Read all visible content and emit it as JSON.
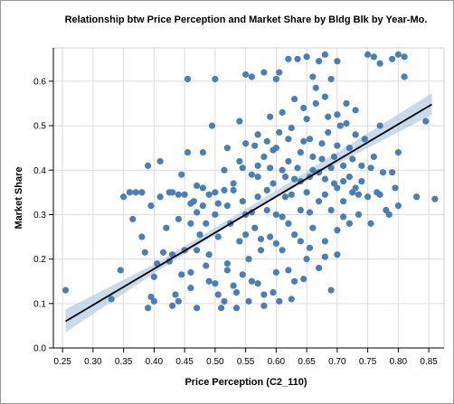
{
  "chart_data": {
    "type": "scatter",
    "title": "Relationship btw Price Perception and Market Share by Bldg Blk by Year-Mo.",
    "xlabel": "Price Perception (C2_110)",
    "ylabel": "Market Share",
    "xlim": [
      0.235,
      0.875
    ],
    "ylim": [
      0.0,
      0.675
    ],
    "xticks": [
      "0.25",
      "0.30",
      "0.35",
      "0.40",
      "0.45",
      "0.50",
      "0.55",
      "0.60",
      "0.65",
      "0.70",
      "0.75",
      "0.80",
      "0.85"
    ],
    "yticks": [
      "0.0",
      "0.1",
      "0.2",
      "0.3",
      "0.4",
      "0.5",
      "0.6"
    ],
    "grid": true,
    "colors": {
      "point": "#4a7eb5",
      "line": "#000000",
      "band": "#b7cde3",
      "grid": "#dcdcdc"
    },
    "trendline": {
      "x": [
        0.255,
        0.855
      ],
      "y": [
        0.06,
        0.548
      ]
    },
    "confidence_band": {
      "x": [
        0.255,
        0.4,
        0.55,
        0.6,
        0.7,
        0.855
      ],
      "lower": [
        0.035,
        0.168,
        0.298,
        0.338,
        0.414,
        0.525
      ],
      "upper": [
        0.087,
        0.188,
        0.312,
        0.354,
        0.44,
        0.573
      ]
    },
    "points": [
      [
        0.255,
        0.13
      ],
      [
        0.33,
        0.11
      ],
      [
        0.345,
        0.175
      ],
      [
        0.35,
        0.34
      ],
      [
        0.36,
        0.35
      ],
      [
        0.365,
        0.29
      ],
      [
        0.37,
        0.35
      ],
      [
        0.38,
        0.35
      ],
      [
        0.38,
        0.25
      ],
      [
        0.385,
        0.215
      ],
      [
        0.39,
        0.41
      ],
      [
        0.395,
        0.115
      ],
      [
        0.39,
        0.09
      ],
      [
        0.395,
        0.32
      ],
      [
        0.4,
        0.105
      ],
      [
        0.4,
        0.16
      ],
      [
        0.405,
        0.19
      ],
      [
        0.41,
        0.42
      ],
      [
        0.41,
        0.34
      ],
      [
        0.42,
        0.27
      ],
      [
        0.425,
        0.35
      ],
      [
        0.43,
        0.35
      ],
      [
        0.43,
        0.21
      ],
      [
        0.435,
        0.12
      ],
      [
        0.44,
        0.345
      ],
      [
        0.44,
        0.29
      ],
      [
        0.445,
        0.39
      ],
      [
        0.45,
        0.22
      ],
      [
        0.455,
        0.605
      ],
      [
        0.455,
        0.44
      ],
      [
        0.46,
        0.28
      ],
      [
        0.46,
        0.17
      ],
      [
        0.465,
        0.33
      ],
      [
        0.47,
        0.365
      ],
      [
        0.47,
        0.22
      ],
      [
        0.47,
        0.09
      ],
      [
        0.48,
        0.44
      ],
      [
        0.48,
        0.36
      ],
      [
        0.48,
        0.32
      ],
      [
        0.485,
        0.28
      ],
      [
        0.49,
        0.21
      ],
      [
        0.49,
        0.15
      ],
      [
        0.495,
        0.5
      ],
      [
        0.5,
        0.605
      ],
      [
        0.5,
        0.35
      ],
      [
        0.5,
        0.3
      ],
      [
        0.505,
        0.25
      ],
      [
        0.505,
        0.12
      ],
      [
        0.51,
        0.09
      ],
      [
        0.515,
        0.4
      ],
      [
        0.52,
        0.45
      ],
      [
        0.52,
        0.32
      ],
      [
        0.52,
        0.19
      ],
      [
        0.525,
        0.28
      ],
      [
        0.53,
        0.37
      ],
      [
        0.53,
        0.14
      ],
      [
        0.535,
        0.09
      ],
      [
        0.54,
        0.51
      ],
      [
        0.54,
        0.42
      ],
      [
        0.54,
        0.24
      ],
      [
        0.545,
        0.33
      ],
      [
        0.55,
        0.615
      ],
      [
        0.55,
        0.46
      ],
      [
        0.55,
        0.3
      ],
      [
        0.555,
        0.2
      ],
      [
        0.56,
        0.39
      ],
      [
        0.56,
        0.61
      ],
      [
        0.56,
        0.15
      ],
      [
        0.565,
        0.27
      ],
      [
        0.57,
        0.48
      ],
      [
        0.57,
        0.34
      ],
      [
        0.575,
        0.22
      ],
      [
        0.58,
        0.62
      ],
      [
        0.58,
        0.43
      ],
      [
        0.58,
        0.12
      ],
      [
        0.585,
        0.31
      ],
      [
        0.59,
        0.52
      ],
      [
        0.59,
        0.25
      ],
      [
        0.595,
        0.37
      ],
      [
        0.6,
        0.605
      ],
      [
        0.6,
        0.45
      ],
      [
        0.6,
        0.3
      ],
      [
        0.6,
        0.17
      ],
      [
        0.605,
        0.62
      ],
      [
        0.61,
        0.4
      ],
      [
        0.61,
        0.53
      ],
      [
        0.61,
        0.22
      ],
      [
        0.615,
        0.34
      ],
      [
        0.62,
        0.65
      ],
      [
        0.62,
        0.47
      ],
      [
        0.62,
        0.28
      ],
      [
        0.625,
        0.11
      ],
      [
        0.63,
        0.56
      ],
      [
        0.63,
        0.38
      ],
      [
        0.63,
        0.15
      ],
      [
        0.635,
        0.65
      ],
      [
        0.64,
        0.44
      ],
      [
        0.64,
        0.31
      ],
      [
        0.64,
        0.24
      ],
      [
        0.645,
        0.54
      ],
      [
        0.65,
        0.655
      ],
      [
        0.65,
        0.35
      ],
      [
        0.65,
        0.2
      ],
      [
        0.655,
        0.47
      ],
      [
        0.66,
        0.61
      ],
      [
        0.66,
        0.4
      ],
      [
        0.66,
        0.27
      ],
      [
        0.665,
        0.55
      ],
      [
        0.67,
        0.645
      ],
      [
        0.67,
        0.33
      ],
      [
        0.67,
        0.18
      ],
      [
        0.675,
        0.46
      ],
      [
        0.68,
        0.66
      ],
      [
        0.68,
        0.38
      ],
      [
        0.68,
        0.24
      ],
      [
        0.685,
        0.52
      ],
      [
        0.69,
        0.605
      ],
      [
        0.69,
        0.31
      ],
      [
        0.69,
        0.13
      ],
      [
        0.695,
        0.43
      ],
      [
        0.7,
        0.645
      ],
      [
        0.7,
        0.36
      ],
      [
        0.7,
        0.21
      ],
      [
        0.705,
        0.5
      ],
      [
        0.71,
        0.33
      ],
      [
        0.71,
        0.41
      ],
      [
        0.715,
        0.55
      ],
      [
        0.72,
        0.45
      ],
      [
        0.72,
        0.28
      ],
      [
        0.725,
        0.35
      ],
      [
        0.73,
        0.48
      ],
      [
        0.73,
        0.36
      ],
      [
        0.735,
        0.3
      ],
      [
        0.74,
        0.41
      ],
      [
        0.745,
        0.47
      ],
      [
        0.75,
        0.66
      ],
      [
        0.75,
        0.34
      ],
      [
        0.755,
        0.28
      ],
      [
        0.76,
        0.655
      ],
      [
        0.76,
        0.43
      ],
      [
        0.765,
        0.35
      ],
      [
        0.77,
        0.64
      ],
      [
        0.77,
        0.5
      ],
      [
        0.775,
        0.395
      ],
      [
        0.78,
        0.31
      ],
      [
        0.785,
        0.3
      ],
      [
        0.79,
        0.65
      ],
      [
        0.795,
        0.36
      ],
      [
        0.8,
        0.66
      ],
      [
        0.8,
        0.44
      ],
      [
        0.8,
        0.32
      ],
      [
        0.81,
        0.61
      ],
      [
        0.81,
        0.655
      ],
      [
        0.83,
        0.34
      ],
      [
        0.845,
        0.51
      ],
      [
        0.86,
        0.335
      ],
      [
        0.53,
        0.355
      ],
      [
        0.56,
        0.305
      ],
      [
        0.585,
        0.355
      ],
      [
        0.61,
        0.295
      ],
      [
        0.625,
        0.345
      ],
      [
        0.64,
        0.375
      ],
      [
        0.655,
        0.305
      ],
      [
        0.67,
        0.395
      ],
      [
        0.68,
        0.345
      ],
      [
        0.695,
        0.37
      ],
      [
        0.71,
        0.295
      ],
      [
        0.72,
        0.385
      ],
      [
        0.735,
        0.345
      ],
      [
        0.57,
        0.41
      ],
      [
        0.595,
        0.445
      ],
      [
        0.62,
        0.42
      ],
      [
        0.645,
        0.465
      ],
      [
        0.66,
        0.43
      ],
      [
        0.685,
        0.485
      ],
      [
        0.7,
        0.455
      ],
      [
        0.725,
        0.425
      ],
      [
        0.55,
        0.255
      ],
      [
        0.575,
        0.245
      ],
      [
        0.6,
        0.235
      ],
      [
        0.63,
        0.255
      ],
      [
        0.655,
        0.225
      ],
      [
        0.68,
        0.205
      ],
      [
        0.7,
        0.265
      ],
      [
        0.52,
        0.175
      ],
      [
        0.545,
        0.165
      ],
      [
        0.57,
        0.145
      ],
      [
        0.595,
        0.125
      ],
      [
        0.62,
        0.175
      ],
      [
        0.645,
        0.155
      ],
      [
        0.47,
        0.305
      ],
      [
        0.49,
        0.345
      ],
      [
        0.505,
        0.325
      ],
      [
        0.515,
        0.355
      ],
      [
        0.45,
        0.345
      ],
      [
        0.46,
        0.325
      ],
      [
        0.475,
        0.255
      ],
      [
        0.485,
        0.185
      ],
      [
        0.5,
        0.145
      ],
      [
        0.515,
        0.105
      ],
      [
        0.535,
        0.125
      ],
      [
        0.555,
        0.105
      ],
      [
        0.58,
        0.095
      ],
      [
        0.605,
        0.105
      ],
      [
        0.43,
        0.095
      ],
      [
        0.44,
        0.105
      ],
      [
        0.415,
        0.215
      ],
      [
        0.425,
        0.195
      ],
      [
        0.445,
        0.165
      ],
      [
        0.46,
        0.135
      ],
      [
        0.68,
        0.565
      ],
      [
        0.7,
        0.525
      ],
      [
        0.715,
        0.505
      ],
      [
        0.73,
        0.535
      ],
      [
        0.65,
        0.515
      ],
      [
        0.665,
        0.585
      ],
      [
        0.625,
        0.495
      ],
      [
        0.605,
        0.485
      ],
      [
        0.585,
        0.465
      ],
      [
        0.565,
        0.455
      ],
      [
        0.545,
        0.405
      ],
      [
        0.57,
        0.385
      ],
      [
        0.59,
        0.405
      ],
      [
        0.615,
        0.385
      ],
      [
        0.635,
        0.405
      ],
      [
        0.655,
        0.385
      ],
      [
        0.675,
        0.425
      ],
      [
        0.69,
        0.405
      ],
      [
        0.71,
        0.375
      ],
      [
        0.74,
        0.375
      ],
      [
        0.755,
        0.405
      ],
      [
        0.77,
        0.345
      ],
      [
        0.79,
        0.395
      ]
    ]
  }
}
